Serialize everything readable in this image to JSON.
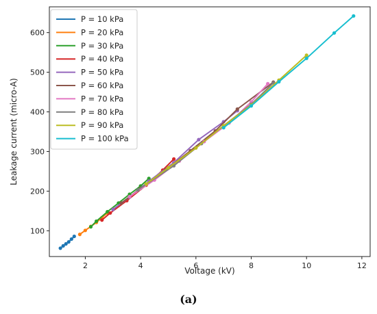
{
  "chart_data": {
    "type": "line",
    "xlabel": "Voltage (kV)",
    "ylabel": "Leakage current (micro-A)",
    "xlim": [
      0.7,
      12.3
    ],
    "ylim": [
      35,
      665
    ],
    "xticks": [
      2,
      4,
      6,
      8,
      10,
      12
    ],
    "yticks": [
      100,
      200,
      300,
      400,
      500,
      600
    ],
    "legend_position": "upper-left",
    "grid": false,
    "series": [
      {
        "name": "P = 10 kPa",
        "color": "#1f77b4",
        "x": [
          1.1,
          1.2,
          1.3,
          1.4,
          1.5,
          1.6
        ],
        "y": [
          56,
          62,
          67,
          72,
          79,
          86
        ]
      },
      {
        "name": "P = 20 kPa",
        "color": "#ff7f0e",
        "x": [
          1.8,
          2.0,
          2.2,
          2.4,
          2.6,
          2.8
        ],
        "y": [
          91,
          101,
          111,
          121,
          133,
          145
        ]
      },
      {
        "name": "P = 30 kPa",
        "color": "#2ca02c",
        "x": [
          2.2,
          2.4,
          2.8,
          3.2,
          3.6,
          4.0,
          4.3
        ],
        "y": [
          110,
          124,
          148,
          170,
          192,
          213,
          232
        ]
      },
      {
        "name": "P = 40 kPa",
        "color": "#d62728",
        "x": [
          2.6,
          2.9,
          3.5,
          4.2,
          4.8,
          5.2
        ],
        "y": [
          127,
          145,
          176,
          215,
          253,
          281
        ]
      },
      {
        "name": "P = 50 kPa",
        "color": "#9467bd",
        "x": [
          3.0,
          3.6,
          4.3,
          5.2,
          6.1,
          7.0,
          7.5
        ],
        "y": [
          154,
          185,
          225,
          272,
          330,
          375,
          403
        ]
      },
      {
        "name": "P = 60 kPa",
        "color": "#8c564b",
        "x": [
          3.3,
          4.0,
          4.9,
          5.8,
          6.7,
          7.5,
          8.8
        ],
        "y": [
          170,
          207,
          253,
          302,
          352,
          407,
          475
        ]
      },
      {
        "name": "P = 70 kPa",
        "color": "#e377c2",
        "x": [
          3.6,
          4.5,
          5.4,
          6.3,
          7.2,
          8.0,
          8.6
        ],
        "y": [
          186,
          228,
          276,
          325,
          372,
          425,
          471
        ]
      },
      {
        "name": "P = 80 kPa",
        "color": "#7f7f7f",
        "x": [
          3.9,
          5.2,
          6.2,
          7.0,
          8.0,
          8.8
        ],
        "y": [
          203,
          264,
          320,
          365,
          419,
          473
        ]
      },
      {
        "name": "P = 90 kPa",
        "color": "#bcbd22",
        "x": [
          4.2,
          5.0,
          6.0,
          7.0,
          8.0,
          9.0,
          10.0
        ],
        "y": [
          218,
          259,
          309,
          365,
          417,
          480,
          543
        ]
      },
      {
        "name": "P = 100 kPa",
        "color": "#17becf",
        "x": [
          7.0,
          8.0,
          9.0,
          10.0,
          11.0,
          11.7
        ],
        "y": [
          360,
          415,
          476,
          535,
          599,
          642
        ]
      }
    ]
  },
  "caption": "(a)"
}
